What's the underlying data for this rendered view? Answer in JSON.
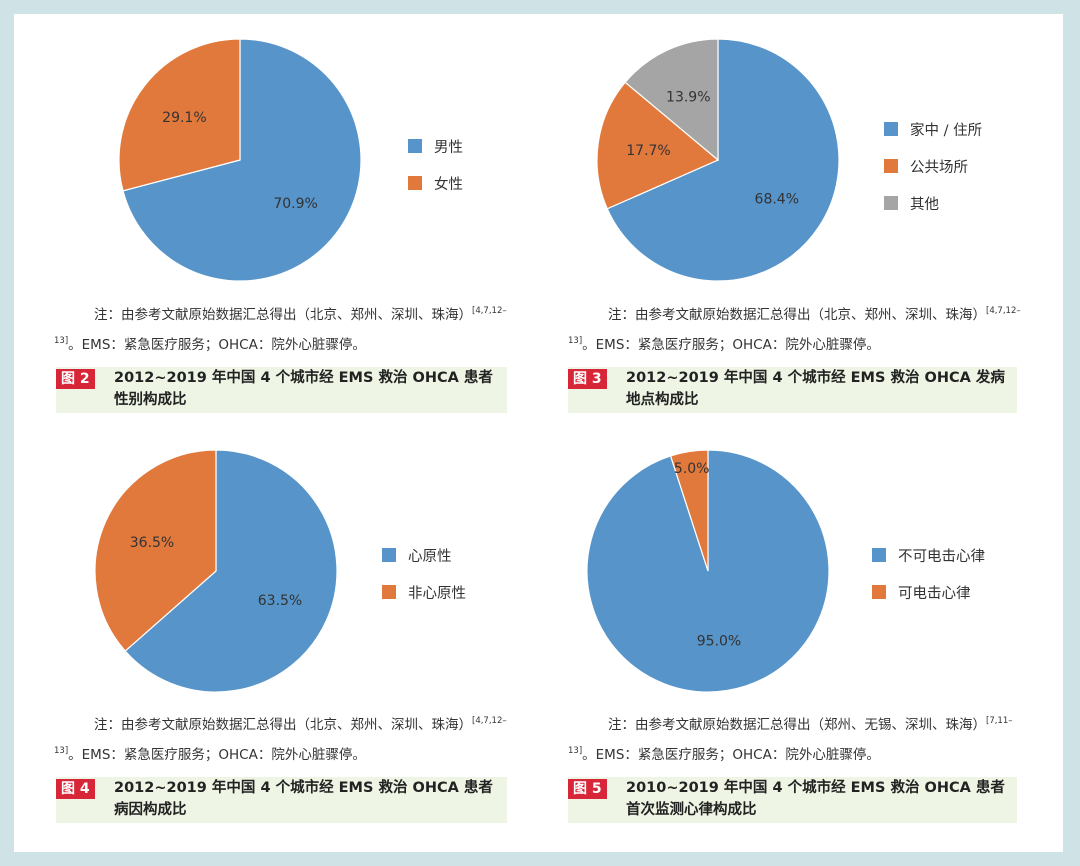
{
  "colors": {
    "blue": "#5694c9",
    "orange": "#e2793c",
    "gray": "#a5a5a5"
  },
  "chart_data": [
    {
      "type": "pie",
      "categories": [
        "男性",
        "女性"
      ],
      "values": [
        70.9,
        29.1
      ],
      "labels": [
        "70.9%",
        "29.1%"
      ],
      "colors": [
        "#5694c9",
        "#e2793c"
      ],
      "legend": "right",
      "note": {
        "prefix": "注：由参考文献原始数据汇总得出（北京、郑州、深圳、珠海）",
        "refs": "[4,7,12–13]",
        "suffix": "。EMS：紧急医疗服务；OHCA：院外心脏骤停。"
      },
      "figure_label": "图 2",
      "caption": "2012~2019 年中国 4 个城市经 EMS 救治 OHCA 患者性别构成比"
    },
    {
      "type": "pie",
      "categories": [
        "家中 / 住所",
        "公共场所",
        "其他"
      ],
      "values": [
        68.4,
        17.7,
        13.9
      ],
      "labels": [
        "68.4%",
        "17.7%",
        "13.9%"
      ],
      "colors": [
        "#5694c9",
        "#e2793c",
        "#a5a5a5"
      ],
      "legend": "right",
      "note": {
        "prefix": "注：由参考文献原始数据汇总得出（北京、郑州、深圳、珠海）",
        "refs": "[4,7,12–13]",
        "suffix": "。EMS：紧急医疗服务；OHCA：院外心脏骤停。"
      },
      "figure_label": "图 3",
      "caption": "2012~2019 年中国 4 个城市经 EMS 救治 OHCA 发病地点构成比"
    },
    {
      "type": "pie",
      "categories": [
        "心原性",
        "非心原性"
      ],
      "values": [
        63.5,
        36.5
      ],
      "labels": [
        "63.5%",
        "36.5%"
      ],
      "colors": [
        "#5694c9",
        "#e2793c"
      ],
      "legend": "right",
      "note": {
        "prefix": "注：由参考文献原始数据汇总得出（北京、郑州、深圳、珠海）",
        "refs": "[4,7,12–13]",
        "suffix": "。EMS：紧急医疗服务；OHCA：院外心脏骤停。"
      },
      "figure_label": "图 4",
      "caption": "2012~2019 年中国 4 个城市经 EMS 救治 OHCA 患者病因构成比"
    },
    {
      "type": "pie",
      "categories": [
        "不可电击心律",
        "可电击心律"
      ],
      "values": [
        95.0,
        5.0
      ],
      "labels": [
        "95.0%",
        "5.0%"
      ],
      "colors": [
        "#5694c9",
        "#e2793c"
      ],
      "legend": "right",
      "note": {
        "prefix": "注：由参考文献原始数据汇总得出（郑州、无锡、深圳、珠海）",
        "refs": "[7,11–13]",
        "suffix": "。EMS：紧急医疗服务；OHCA：院外心脏骤停。"
      },
      "figure_label": "图 5",
      "caption": "2010~2019 年中国 4 个城市经 EMS 救治 OHCA 患者首次监测心律构成比"
    }
  ]
}
